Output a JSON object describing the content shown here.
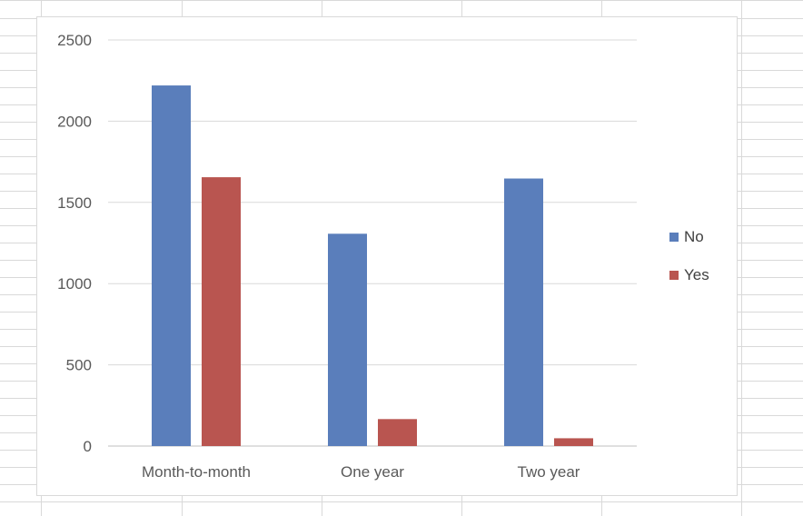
{
  "chart_data": {
    "type": "bar",
    "title": "",
    "xlabel": "",
    "ylabel": "",
    "categories": [
      "Month-to-month",
      "One year",
      "Two year"
    ],
    "series": [
      {
        "name": "No",
        "color": "#5a7ebb",
        "values": [
          2220,
          1307,
          1647
        ]
      },
      {
        "name": "Yes",
        "color": "#b95550",
        "values": [
          1655,
          166,
          48
        ]
      }
    ],
    "ylim": [
      0,
      2500
    ],
    "yticks": [
      "0",
      "500",
      "1000",
      "1500",
      "2000",
      "2500"
    ],
    "grid": true,
    "legend": "right"
  }
}
